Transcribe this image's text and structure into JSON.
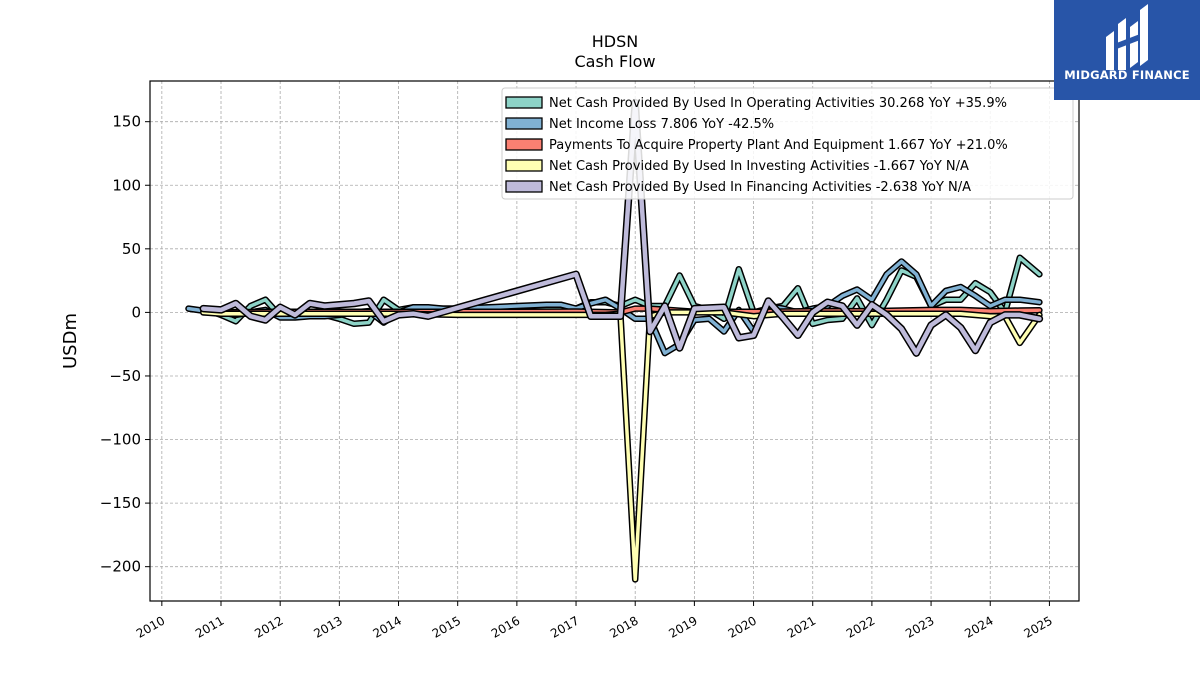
{
  "brand": {
    "name": "MIDGARD FINANCE",
    "bg": "#2855a8"
  },
  "chart_data": {
    "type": "line",
    "title": "HDSN",
    "subtitle": "Cash Flow",
    "ylabel": "USDm",
    "xlabel": "",
    "ylim": [
      -227,
      182
    ],
    "xlim": [
      2009.8,
      2025.5
    ],
    "yticks": [
      -200,
      -150,
      -100,
      -50,
      0,
      50,
      100,
      150
    ],
    "ytick_labels": [
      "−200",
      "−150",
      "−100",
      "−50",
      "0",
      "50",
      "100",
      "150"
    ],
    "xticks": [
      2010,
      2011,
      2012,
      2013,
      2014,
      2015,
      2016,
      2017,
      2018,
      2019,
      2020,
      2021,
      2022,
      2023,
      2024,
      2025
    ],
    "xtick_labels": [
      "2010",
      "2011",
      "2012",
      "2013",
      "2014",
      "2015",
      "2016",
      "2017",
      "2018",
      "2019",
      "2020",
      "2021",
      "2022",
      "2023",
      "2024",
      "2025"
    ],
    "grid": true,
    "legend_position": "top-right",
    "series": [
      {
        "name": "Net Cash Provided By Used In Operating Activities",
        "legend_label": "Net Cash Provided By Used In Operating Activities  30.268 YoY +35.9%",
        "color": "#8dd3c7",
        "lw": 3.5,
        "points": [
          [
            2010.7,
            3
          ],
          [
            2011.0,
            -2
          ],
          [
            2011.25,
            -7
          ],
          [
            2011.5,
            5
          ],
          [
            2011.75,
            10
          ],
          [
            2012.0,
            -3
          ],
          [
            2012.25,
            -2
          ],
          [
            2012.5,
            -2
          ],
          [
            2012.75,
            -2
          ],
          [
            2013.0,
            -5
          ],
          [
            2013.25,
            -9
          ],
          [
            2013.5,
            -8
          ],
          [
            2013.75,
            10
          ],
          [
            2014.0,
            2
          ],
          [
            2014.25,
            4
          ],
          [
            2014.5,
            3
          ],
          [
            2014.75,
            3
          ],
          [
            2017.0,
            3
          ],
          [
            2017.25,
            8
          ],
          [
            2017.5,
            8
          ],
          [
            2017.75,
            5
          ],
          [
            2018.0,
            10
          ],
          [
            2018.25,
            5
          ],
          [
            2018.5,
            5
          ],
          [
            2018.75,
            29
          ],
          [
            2019.0,
            5
          ],
          [
            2019.25,
            2
          ],
          [
            2019.5,
            -5
          ],
          [
            2019.75,
            34
          ],
          [
            2020.0,
            0
          ],
          [
            2020.25,
            3
          ],
          [
            2020.5,
            5
          ],
          [
            2020.75,
            19
          ],
          [
            2021.0,
            -9
          ],
          [
            2021.25,
            -6
          ],
          [
            2021.5,
            -5
          ],
          [
            2021.75,
            11
          ],
          [
            2022.0,
            -10
          ],
          [
            2022.25,
            10
          ],
          [
            2022.5,
            33
          ],
          [
            2022.75,
            28
          ],
          [
            2023.0,
            5
          ],
          [
            2023.25,
            10
          ],
          [
            2023.5,
            10
          ],
          [
            2023.75,
            23
          ],
          [
            2024.0,
            16
          ],
          [
            2024.25,
            0
          ],
          [
            2024.5,
            43
          ],
          [
            2024.83,
            30
          ]
        ]
      },
      {
        "name": "Net Income Loss",
        "legend_label": "Net Income Loss  7.806 YoY -42.5%",
        "color": "#80b1d3",
        "lw": 3.5,
        "points": [
          [
            2010.45,
            3
          ],
          [
            2010.75,
            1
          ],
          [
            2011.0,
            0
          ],
          [
            2011.25,
            -2
          ],
          [
            2011.5,
            0
          ],
          [
            2011.75,
            2
          ],
          [
            2012.0,
            -4
          ],
          [
            2012.25,
            -4
          ],
          [
            2012.5,
            -3
          ],
          [
            2012.75,
            -3
          ],
          [
            2013.0,
            -2
          ],
          [
            2013.25,
            0
          ],
          [
            2013.5,
            1
          ],
          [
            2013.75,
            -8
          ],
          [
            2014.0,
            0
          ],
          [
            2014.25,
            4
          ],
          [
            2014.5,
            4
          ],
          [
            2014.75,
            3
          ],
          [
            2015.0,
            3
          ],
          [
            2016.0,
            5
          ],
          [
            2016.5,
            6
          ],
          [
            2016.75,
            6
          ],
          [
            2017.0,
            3
          ],
          [
            2017.25,
            7
          ],
          [
            2017.5,
            10
          ],
          [
            2017.75,
            3
          ],
          [
            2018.0,
            -5
          ],
          [
            2018.25,
            -5
          ],
          [
            2018.5,
            -32
          ],
          [
            2018.75,
            -25
          ],
          [
            2019.0,
            -6
          ],
          [
            2019.25,
            -5
          ],
          [
            2019.5,
            -15
          ],
          [
            2019.75,
            2
          ],
          [
            2020.0,
            -15
          ],
          [
            2020.25,
            5
          ],
          [
            2020.5,
            3
          ],
          [
            2020.75,
            0
          ],
          [
            2021.0,
            3
          ],
          [
            2021.25,
            5
          ],
          [
            2021.5,
            13
          ],
          [
            2021.75,
            18
          ],
          [
            2022.0,
            10
          ],
          [
            2022.25,
            30
          ],
          [
            2022.5,
            40
          ],
          [
            2022.75,
            30
          ],
          [
            2023.0,
            5
          ],
          [
            2023.25,
            17
          ],
          [
            2023.5,
            20
          ],
          [
            2023.75,
            13
          ],
          [
            2024.0,
            5
          ],
          [
            2024.25,
            10
          ],
          [
            2024.5,
            10
          ],
          [
            2024.83,
            8
          ]
        ]
      },
      {
        "name": "Payments To Acquire Property Plant And Equipment",
        "legend_label": "Payments To Acquire Property Plant And Equipment  1.667 YoY +21.0%",
        "color": "#fb8072",
        "lw": 3.5,
        "points": [
          [
            2010.7,
            0
          ],
          [
            2012.0,
            0.5
          ],
          [
            2014.0,
            0.5
          ],
          [
            2016.0,
            0.5
          ],
          [
            2017.0,
            0.7
          ],
          [
            2017.75,
            0
          ],
          [
            2018.0,
            3
          ],
          [
            2018.25,
            3
          ],
          [
            2019.0,
            0.5
          ],
          [
            2020.0,
            0.5
          ],
          [
            2021.0,
            1
          ],
          [
            2022.0,
            1
          ],
          [
            2023.0,
            2
          ],
          [
            2023.5,
            2
          ],
          [
            2024.0,
            1
          ],
          [
            2024.5,
            1.5
          ],
          [
            2024.83,
            1.7
          ]
        ]
      },
      {
        "name": "Net Cash Provided By Used In Investing Activities",
        "legend_label": "Net Cash Provided By Used In Investing Activities  -1.667 YoY N/A",
        "color": "#ffffb3",
        "lw": 3.5,
        "points": [
          [
            2010.7,
            0
          ],
          [
            2011.0,
            -1
          ],
          [
            2011.5,
            -1
          ],
          [
            2012.0,
            -1
          ],
          [
            2013.0,
            -1
          ],
          [
            2014.0,
            -1
          ],
          [
            2015.0,
            -2
          ],
          [
            2016.0,
            -2
          ],
          [
            2017.0,
            -2
          ],
          [
            2017.5,
            -2
          ],
          [
            2017.75,
            -1
          ],
          [
            2018.0,
            -210
          ],
          [
            2018.25,
            -3
          ],
          [
            2018.5,
            0
          ],
          [
            2019.0,
            0
          ],
          [
            2019.5,
            0
          ],
          [
            2020.0,
            -3
          ],
          [
            2020.5,
            -1
          ],
          [
            2021.0,
            -1
          ],
          [
            2021.5,
            -1
          ],
          [
            2022.0,
            -1
          ],
          [
            2022.5,
            -1
          ],
          [
            2023.0,
            -1
          ],
          [
            2023.5,
            -1
          ],
          [
            2024.0,
            -3
          ],
          [
            2024.25,
            -3
          ],
          [
            2024.5,
            -24
          ],
          [
            2024.83,
            -2
          ]
        ]
      },
      {
        "name": "Net Cash Provided By Used In Financing Activities",
        "legend_label": "Net Cash Provided By Used In Financing Activities  -2.638 YoY N/A",
        "color": "#bebada",
        "lw": 4.5,
        "points": [
          [
            2010.7,
            3
          ],
          [
            2011.0,
            2
          ],
          [
            2011.25,
            7
          ],
          [
            2011.5,
            -3
          ],
          [
            2011.75,
            -6
          ],
          [
            2012.0,
            4
          ],
          [
            2012.25,
            -2
          ],
          [
            2012.5,
            7
          ],
          [
            2012.75,
            5
          ],
          [
            2013.0,
            6
          ],
          [
            2013.25,
            7
          ],
          [
            2013.5,
            9
          ],
          [
            2013.75,
            -7
          ],
          [
            2014.0,
            -2
          ],
          [
            2014.25,
            -1
          ],
          [
            2014.5,
            -3
          ],
          [
            2017.0,
            30
          ],
          [
            2017.25,
            -3
          ],
          [
            2017.5,
            -3
          ],
          [
            2017.75,
            -3
          ],
          [
            2018.0,
            165
          ],
          [
            2018.25,
            -15
          ],
          [
            2018.5,
            5
          ],
          [
            2018.75,
            -28
          ],
          [
            2019.0,
            3
          ],
          [
            2019.5,
            4
          ],
          [
            2019.75,
            -20
          ],
          [
            2020.0,
            -18
          ],
          [
            2020.25,
            9
          ],
          [
            2020.5,
            -4
          ],
          [
            2020.75,
            -18
          ],
          [
            2021.0,
            0
          ],
          [
            2021.25,
            8
          ],
          [
            2021.5,
            5
          ],
          [
            2021.75,
            -10
          ],
          [
            2022.0,
            6
          ],
          [
            2022.25,
            -2
          ],
          [
            2022.5,
            -13
          ],
          [
            2022.75,
            -32
          ],
          [
            2023.0,
            -10
          ],
          [
            2023.25,
            -2
          ],
          [
            2023.5,
            -12
          ],
          [
            2023.75,
            -30
          ],
          [
            2024.0,
            -8
          ],
          [
            2024.25,
            -2
          ],
          [
            2024.5,
            -2
          ],
          [
            2024.83,
            -5
          ]
        ]
      }
    ]
  }
}
